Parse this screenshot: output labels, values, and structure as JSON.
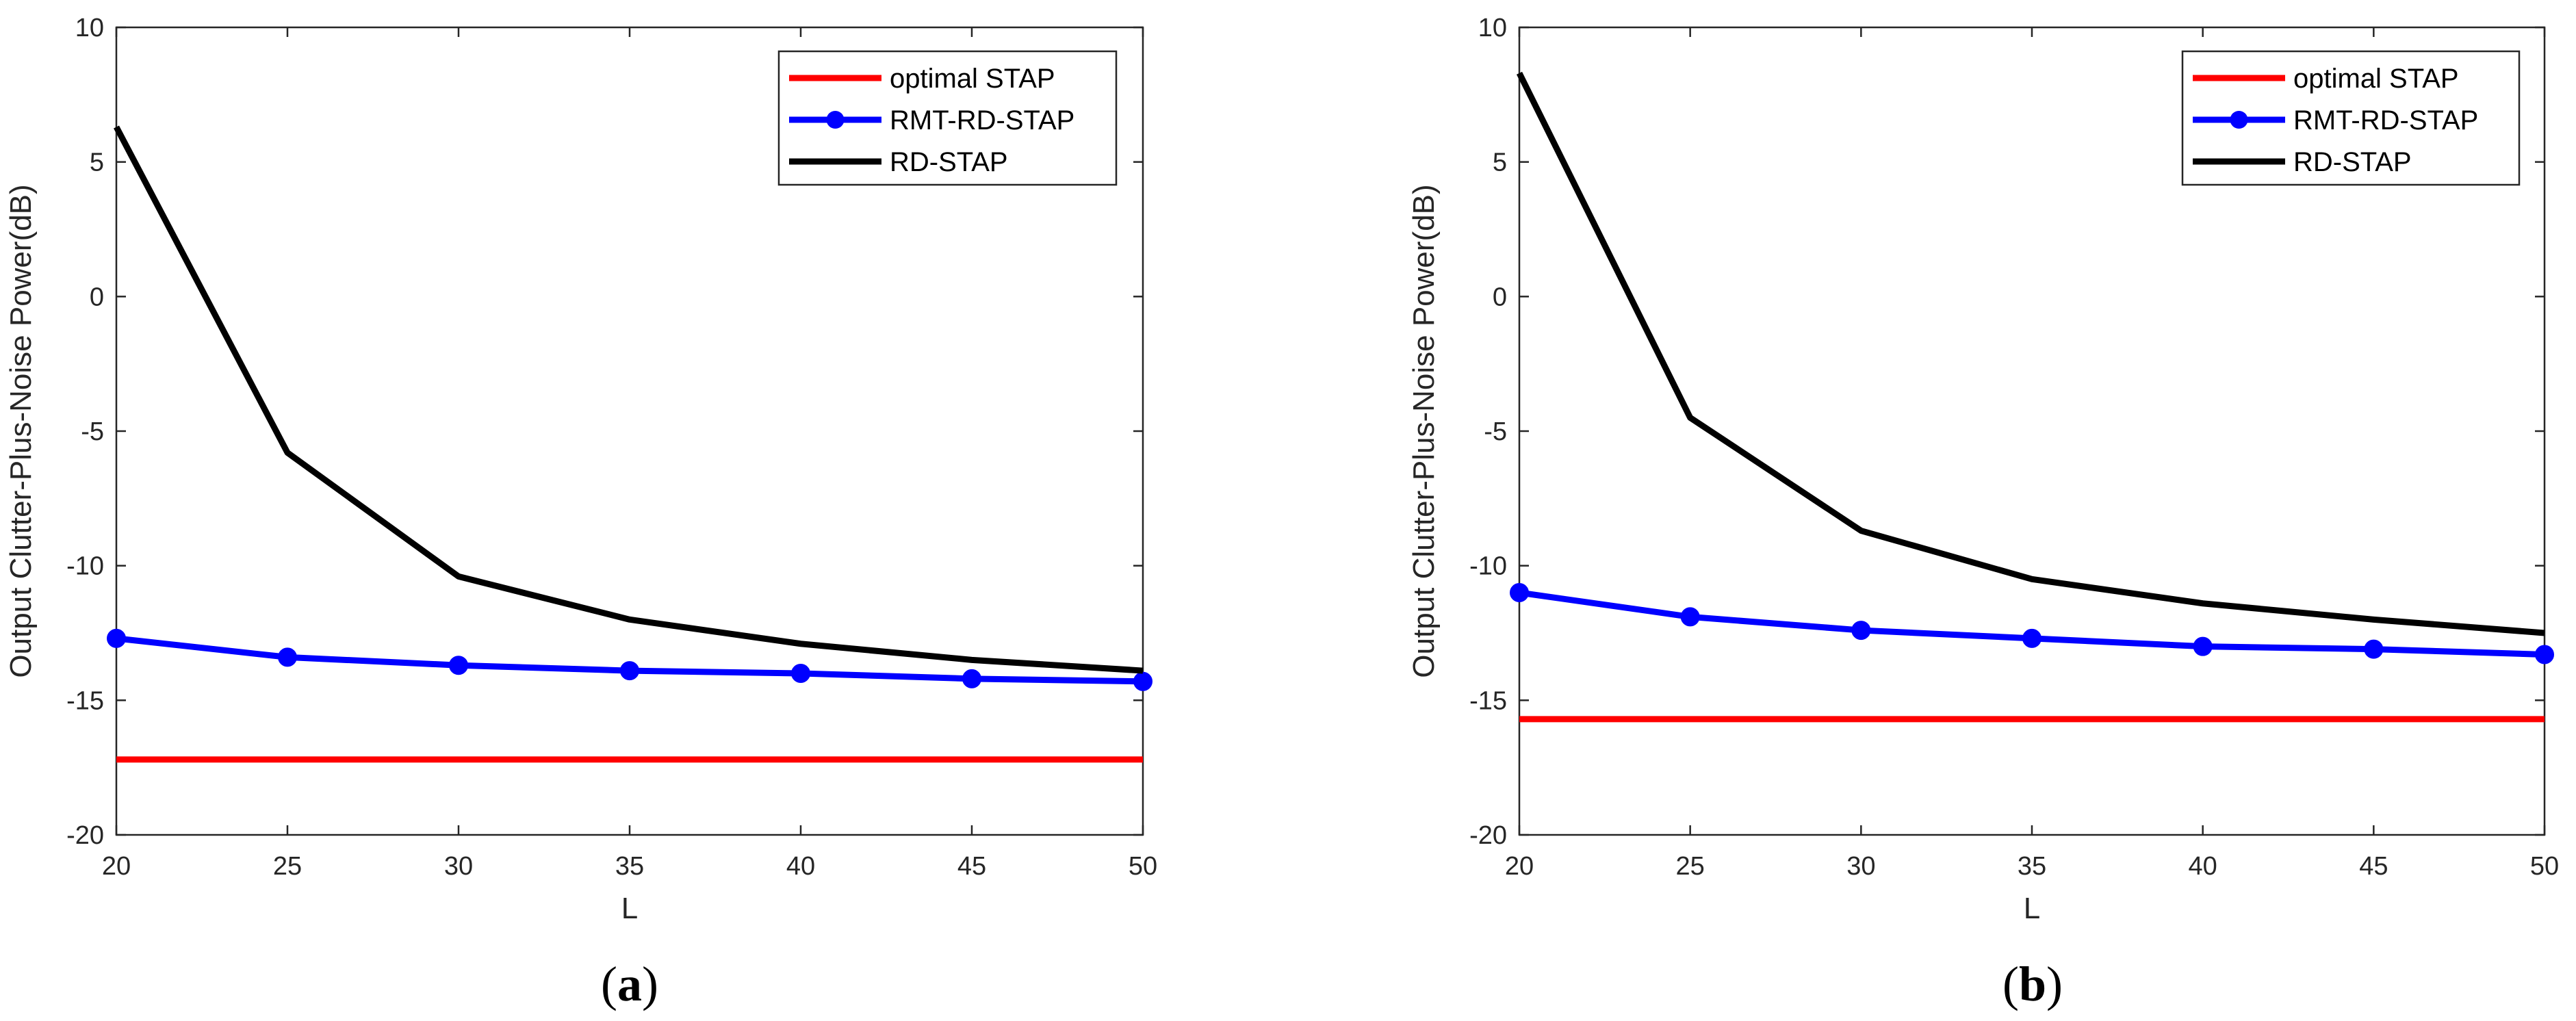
{
  "chart_data": [
    {
      "type": "line",
      "panel_label": "a",
      "xlabel": "L",
      "ylabel": "Output Clutter-Plus-Noise Power(dB)",
      "xlim": [
        20,
        50
      ],
      "ylim": [
        -20,
        10
      ],
      "xticks": [
        20,
        25,
        30,
        35,
        40,
        45,
        50
      ],
      "yticks": [
        -20,
        -15,
        -10,
        -5,
        0,
        5,
        10
      ],
      "legend_position": "top-right",
      "x": [
        20,
        25,
        30,
        35,
        40,
        45,
        50
      ],
      "series": [
        {
          "name": "optimal STAP",
          "color": "#ff0000",
          "markers": false,
          "values": [
            -17.2,
            -17.2,
            -17.2,
            -17.2,
            -17.2,
            -17.2,
            -17.2
          ]
        },
        {
          "name": "RMT-RD-STAP",
          "color": "#0000ff",
          "markers": true,
          "values": [
            -12.7,
            -13.4,
            -13.7,
            -13.9,
            -14.0,
            -14.2,
            -14.3
          ]
        },
        {
          "name": "RD-STAP",
          "color": "#000000",
          "markers": false,
          "values": [
            6.3,
            -5.8,
            -10.4,
            -12.0,
            -12.9,
            -13.5,
            -13.9
          ]
        }
      ]
    },
    {
      "type": "line",
      "panel_label": "b",
      "xlabel": "L",
      "ylabel": "Output Clutter-Plus-Noise Power(dB)",
      "xlim": [
        20,
        50
      ],
      "ylim": [
        -20,
        10
      ],
      "xticks": [
        20,
        25,
        30,
        35,
        40,
        45,
        50
      ],
      "yticks": [
        -20,
        -15,
        -10,
        -5,
        0,
        5,
        10
      ],
      "legend_position": "top-right",
      "x": [
        20,
        25,
        30,
        35,
        40,
        45,
        50
      ],
      "series": [
        {
          "name": "optimal STAP",
          "color": "#ff0000",
          "markers": false,
          "values": [
            -15.7,
            -15.7,
            -15.7,
            -15.7,
            -15.7,
            -15.7,
            -15.7
          ]
        },
        {
          "name": "RMT-RD-STAP",
          "color": "#0000ff",
          "markers": true,
          "values": [
            -11.0,
            -11.9,
            -12.4,
            -12.7,
            -13.0,
            -13.1,
            -13.3
          ]
        },
        {
          "name": "RD-STAP",
          "color": "#000000",
          "markers": false,
          "values": [
            8.3,
            -4.5,
            -8.7,
            -10.5,
            -11.4,
            -12.0,
            -12.5
          ]
        }
      ]
    }
  ],
  "captions": [
    {
      "open": "(",
      "letter": "a",
      "close": ")"
    },
    {
      "open": "(",
      "letter": "b",
      "close": ")"
    }
  ]
}
